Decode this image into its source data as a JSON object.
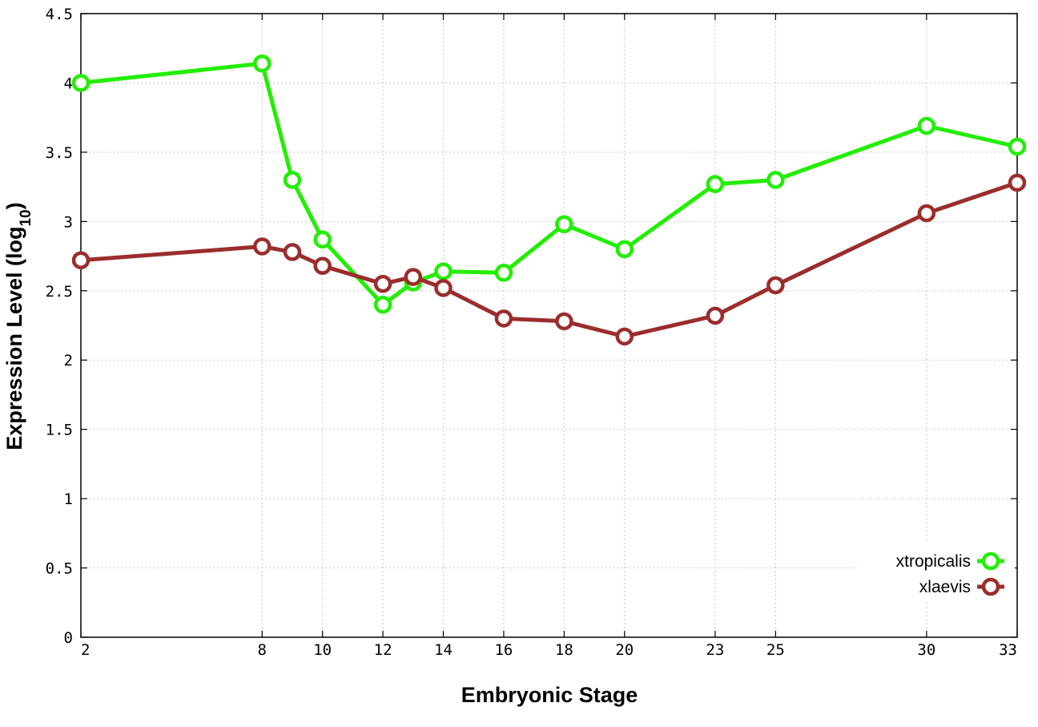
{
  "chart_data": {
    "type": "line",
    "title": "",
    "xlabel": "Embryonic Stage",
    "ylabel": "Expression Level (log",
    "ylabel_subscript": "10",
    "ylabel_close": ")",
    "x": [
      2,
      8,
      9,
      10,
      12,
      13,
      14,
      16,
      18,
      20,
      23,
      25,
      30,
      33
    ],
    "x_tick_labels": [
      "2",
      "8",
      "10",
      "12",
      "14",
      "16",
      "18",
      "20",
      "23",
      "25",
      "30",
      "33"
    ],
    "x_tick_values": [
      2,
      8,
      10,
      12,
      14,
      16,
      18,
      20,
      23,
      25,
      30,
      33
    ],
    "y_tick_labels": [
      "0",
      "0.5",
      "1",
      "1.5",
      "2",
      "2.5",
      "3",
      "3.5",
      "4",
      "4.5"
    ],
    "y_tick_values": [
      0,
      0.5,
      1,
      1.5,
      2,
      2.5,
      3,
      3.5,
      4,
      4.5
    ],
    "xlim": [
      2,
      33
    ],
    "ylim": [
      0,
      4.5
    ],
    "grid": true,
    "legend_position": "bottom-right",
    "series": [
      {
        "name": "xtropicalis",
        "color": "#22ee00",
        "values": [
          4.0,
          4.14,
          3.3,
          2.87,
          2.4,
          2.56,
          2.64,
          2.63,
          2.98,
          2.8,
          3.27,
          3.3,
          3.69,
          3.54
        ]
      },
      {
        "name": "xlaevis",
        "color": "#9b2d2d",
        "values": [
          2.72,
          2.82,
          2.78,
          2.68,
          2.55,
          2.6,
          2.52,
          2.3,
          2.28,
          2.17,
          2.32,
          2.54,
          3.06,
          3.28
        ]
      }
    ]
  }
}
